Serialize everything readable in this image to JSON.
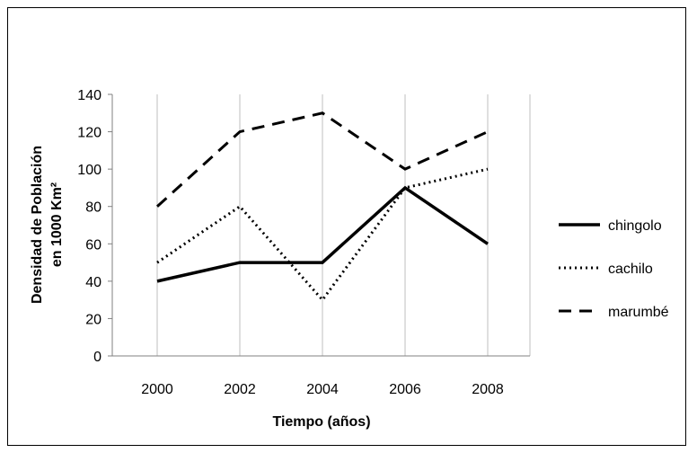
{
  "chart_data": {
    "type": "line",
    "title": "",
    "xlabel": "Tiempo (años)",
    "ylabel_lines": [
      "Densidad de Población",
      "en 1000 Km²"
    ],
    "categories": [
      "2000",
      "2002",
      "2004",
      "2006",
      "2008"
    ],
    "yticks": [
      "0",
      "20",
      "40",
      "60",
      "80",
      "100",
      "120",
      "140"
    ],
    "ylim": [
      0,
      140
    ],
    "grid": "vertical",
    "legend": "right",
    "series": [
      {
        "name": "chingolo",
        "style": "solid",
        "values": [
          40,
          50,
          50,
          90,
          60
        ]
      },
      {
        "name": "cachilo",
        "style": "dotted",
        "values": [
          50,
          80,
          30,
          90,
          100
        ]
      },
      {
        "name": "marumbé",
        "style": "dashed",
        "values": [
          80,
          120,
          130,
          100,
          120
        ]
      }
    ]
  },
  "colors": {
    "line": "#000000",
    "grid": "#bfbfbf",
    "axis": "#808080"
  }
}
